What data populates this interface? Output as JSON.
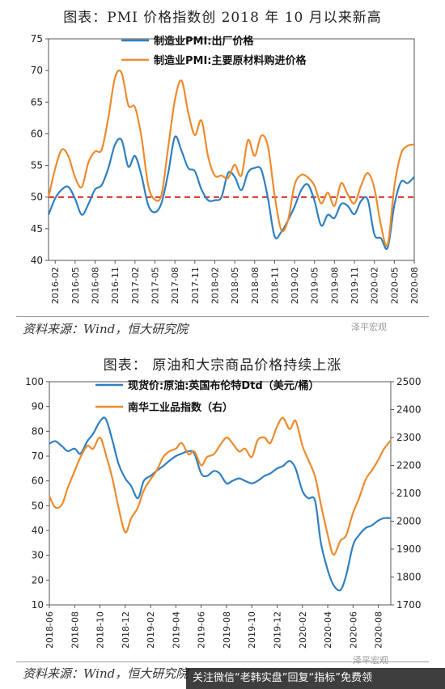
{
  "header": {
    "title1": "图表：PMI 价格指数创 2018 年 10 月以来新高",
    "title2": "图表： 原油和大宗商品价格持续上涨"
  },
  "footer": {
    "source1": "资料来源：Wind，恒大研究院",
    "source2": "资料来源：Wind，恒大研究院",
    "watermark1": "泽平宏观",
    "watermark2": "泽平宏观",
    "banner": "关注微信“老韩实盘”回复“指标”免费领"
  },
  "chart_data": [
    {
      "type": "line",
      "ylim": [
        40,
        75
      ],
      "yticks": [
        40,
        45,
        50,
        55,
        60,
        65,
        70,
        75
      ],
      "xticks": [
        "2016-02",
        "2016-05",
        "2016-08",
        "2016-11",
        "2017-02",
        "2017-05",
        "2017-08",
        "2017-11",
        "2018-02",
        "2018-05",
        "2018-08",
        "2018-11",
        "2019-02",
        "2019-05",
        "2019-08",
        "2019-11",
        "2020-02",
        "2020-05",
        "2020-08"
      ],
      "reference_line": 50,
      "legend_position": "top-left",
      "x": [
        "2016-01",
        "2016-02",
        "2016-03",
        "2016-04",
        "2016-05",
        "2016-06",
        "2016-07",
        "2016-08",
        "2016-09",
        "2016-10",
        "2016-11",
        "2016-12",
        "2017-01",
        "2017-02",
        "2017-03",
        "2017-04",
        "2017-05",
        "2017-06",
        "2017-07",
        "2017-08",
        "2017-09",
        "2017-10",
        "2017-11",
        "2017-12",
        "2018-01",
        "2018-02",
        "2018-03",
        "2018-04",
        "2018-05",
        "2018-06",
        "2018-07",
        "2018-08",
        "2018-09",
        "2018-10",
        "2018-11",
        "2018-12",
        "2019-01",
        "2019-02",
        "2019-03",
        "2019-04",
        "2019-05",
        "2019-06",
        "2019-07",
        "2019-08",
        "2019-09",
        "2019-10",
        "2019-11",
        "2019-12",
        "2020-01",
        "2020-02",
        "2020-03",
        "2020-04",
        "2020-05",
        "2020-06",
        "2020-07",
        "2020-08"
      ],
      "series": [
        {
          "name": "制造业PMI:出厂价格",
          "color": "#2f7fc1",
          "values": [
            47.2,
            49.8,
            51.2,
            51.6,
            49.7,
            47.2,
            48.9,
            51.2,
            51.9,
            54.6,
            58.3,
            59.0,
            54.8,
            56.5,
            53.3,
            48.7,
            47.6,
            49.1,
            53.8,
            59.5,
            57.3,
            54.6,
            54.1,
            51.2,
            49.5,
            49.5,
            50.0,
            53.8,
            53.2,
            51.1,
            53.9,
            54.6,
            54.3,
            49.8,
            43.8,
            44.5,
            46.3,
            48.5,
            51.1,
            52.0,
            49.4,
            45.5,
            47.2,
            46.7,
            48.9,
            48.6,
            47.3,
            49.4,
            49.6,
            44.1,
            43.5,
            42.0,
            48.7,
            52.4,
            52.2,
            53.2
          ]
        },
        {
          "name": "制造业PMI:主要原材料购进价格",
          "color": "#ed8b2c",
          "values": [
            50.0,
            54.5,
            57.5,
            56.4,
            53.1,
            51.6,
            55.5,
            57.2,
            57.5,
            62.6,
            68.9,
            69.6,
            64.5,
            64.2,
            59.3,
            51.8,
            49.6,
            50.4,
            57.9,
            65.3,
            68.4,
            63.4,
            59.8,
            62.1,
            56.4,
            53.4,
            53.4,
            53.0,
            55.1,
            53.4,
            59.0,
            56.5,
            59.7,
            58.0,
            50.3,
            44.8,
            46.3,
            51.9,
            53.5,
            53.1,
            51.8,
            49.0,
            50.7,
            48.6,
            52.2,
            50.4,
            49.0,
            51.8,
            53.8,
            51.4,
            45.5,
            42.5,
            51.6,
            56.8,
            58.1,
            58.3
          ]
        }
      ]
    },
    {
      "type": "line",
      "ylim": [
        10,
        100
      ],
      "yticks": [
        10,
        20,
        30,
        40,
        50,
        60,
        70,
        80,
        90,
        100
      ],
      "y2lim": [
        1700,
        2500
      ],
      "y2ticks": [
        1700,
        1800,
        1900,
        2000,
        2100,
        2200,
        2300,
        2400,
        2500
      ],
      "xticks": [
        "2018-06",
        "2018-08",
        "2018-10",
        "2018-12",
        "2019-02",
        "2019-04",
        "2019-06",
        "2019-08",
        "2019-10",
        "2019-12",
        "2020-02",
        "2020-04",
        "2020-06",
        "2020-08"
      ],
      "legend_position": "top-left",
      "x": [
        "2018-06-01",
        "2018-06-15",
        "2018-07-01",
        "2018-07-15",
        "2018-08-01",
        "2018-08-15",
        "2018-09-01",
        "2018-09-15",
        "2018-10-01",
        "2018-10-15",
        "2018-11-01",
        "2018-11-15",
        "2018-12-01",
        "2018-12-15",
        "2019-01-01",
        "2019-01-15",
        "2019-02-01",
        "2019-02-15",
        "2019-03-01",
        "2019-03-15",
        "2019-04-01",
        "2019-04-15",
        "2019-05-01",
        "2019-05-15",
        "2019-06-01",
        "2019-06-15",
        "2019-07-01",
        "2019-07-15",
        "2019-08-01",
        "2019-08-15",
        "2019-09-01",
        "2019-09-15",
        "2019-10-01",
        "2019-10-15",
        "2019-11-01",
        "2019-11-15",
        "2019-12-01",
        "2019-12-15",
        "2020-01-01",
        "2020-01-15",
        "2020-02-01",
        "2020-02-15",
        "2020-03-01",
        "2020-03-15",
        "2020-04-01",
        "2020-04-15",
        "2020-05-01",
        "2020-05-15",
        "2020-06-01",
        "2020-06-15",
        "2020-07-01",
        "2020-07-15",
        "2020-08-01",
        "2020-08-15",
        "2020-08-31"
      ],
      "series": [
        {
          "name": "现货价:原油:英国布伦特Dtd（美元/桶）",
          "axis": "left",
          "color": "#2f7fc1",
          "values": [
            75,
            76,
            74,
            72,
            73,
            71,
            76,
            79,
            84,
            85,
            76,
            67,
            61,
            58,
            53,
            60,
            62,
            64,
            66,
            68,
            70,
            71,
            72,
            71,
            63,
            62,
            64,
            63,
            59,
            60,
            61,
            60,
            59,
            60,
            62,
            63,
            65,
            66,
            68,
            65,
            56,
            53,
            52,
            35,
            24,
            18,
            16,
            22,
            34,
            38,
            41,
            42,
            44,
            45,
            45
          ]
        },
        {
          "name": "南华工业品指数（右）",
          "axis": "right",
          "color": "#ed8b2c",
          "values": [
            2090,
            2050,
            2060,
            2120,
            2180,
            2230,
            2270,
            2260,
            2300,
            2240,
            2150,
            2050,
            1960,
            2010,
            2050,
            2110,
            2150,
            2180,
            2230,
            2250,
            2260,
            2280,
            2240,
            2250,
            2200,
            2230,
            2240,
            2270,
            2300,
            2280,
            2250,
            2260,
            2230,
            2290,
            2300,
            2280,
            2340,
            2370,
            2330,
            2360,
            2270,
            2220,
            2160,
            2060,
            1950,
            1880,
            1930,
            1950,
            2030,
            2080,
            2150,
            2180,
            2220,
            2260,
            2290
          ]
        }
      ]
    }
  ]
}
